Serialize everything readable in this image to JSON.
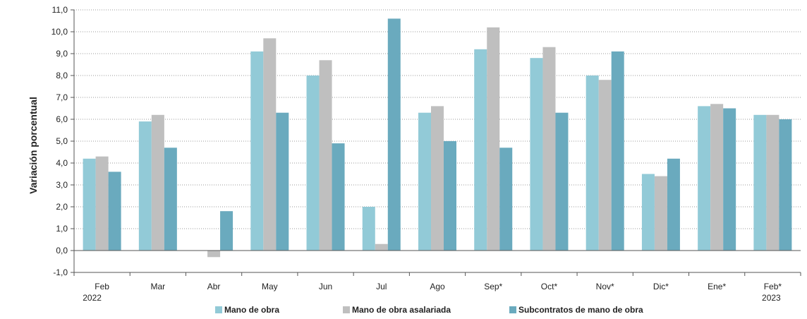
{
  "chart_data": {
    "type": "bar",
    "ylabel": "Variación porcentual",
    "ylim": [
      -1.0,
      11.0
    ],
    "ytick_step": 1.0,
    "grid": "horizontal dotted",
    "legend_position": "bottom",
    "categories": [
      "Feb",
      "Mar",
      "Abr",
      "May",
      "Jun",
      "Jul",
      "Ago",
      "Sep*",
      "Oct*",
      "Nov*",
      "Dic*",
      "Ene*",
      "Feb*"
    ],
    "year_labels": [
      {
        "category_index": 0,
        "label": "2022"
      },
      {
        "category_index": 12,
        "label": "2023"
      }
    ],
    "series": [
      {
        "name": "Mano de obra",
        "color": "#92CAD7",
        "values": [
          4.2,
          5.9,
          0.0,
          9.1,
          8.0,
          2.0,
          6.3,
          9.2,
          8.8,
          8.0,
          3.5,
          6.6,
          6.2
        ]
      },
      {
        "name": "Mano de obra asalariada",
        "color": "#BFBFBF",
        "values": [
          4.3,
          6.2,
          -0.3,
          9.7,
          8.7,
          0.3,
          6.6,
          10.2,
          9.3,
          7.8,
          3.4,
          6.7,
          6.2
        ]
      },
      {
        "name": "Subcontratos de mano de obra",
        "color": "#6AAABE",
        "values": [
          3.6,
          4.7,
          1.8,
          6.3,
          4.9,
          10.6,
          5.0,
          4.7,
          6.3,
          9.1,
          4.2,
          6.5,
          6.0
        ]
      }
    ]
  }
}
